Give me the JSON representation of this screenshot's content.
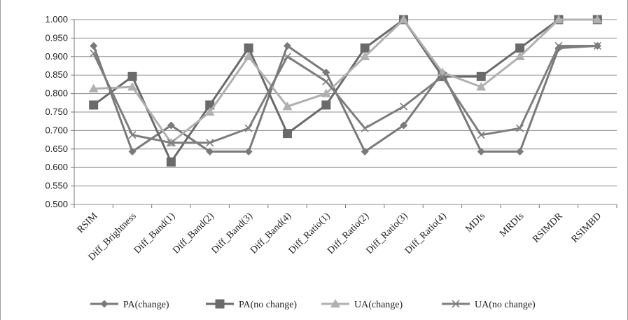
{
  "chart_data": {
    "type": "line",
    "title": "",
    "xlabel": "",
    "ylabel": "",
    "ylim": [
      0.5,
      1.0
    ],
    "yticks": [
      "0.500",
      "0.550",
      "0.600",
      "0.650",
      "0.700",
      "0.750",
      "0.800",
      "0.850",
      "0.900",
      "0.950",
      "1.000"
    ],
    "grid": true,
    "legend_position": "bottom",
    "categories": [
      "RSIM",
      "Diff_Brightness",
      "Diff_Band(1)",
      "Diff_Band(2)",
      "Diff_Band(3)",
      "Diff_Band(4)",
      "Diff_Ratio(1)",
      "Diff_Ratio(2)",
      "Diff_Ratio(3)",
      "Diff_Ratio(4)",
      "MDIs",
      "MRDIs",
      "RSIMDR",
      "RSIMBD"
    ],
    "series": [
      {
        "name": "PA(change)",
        "marker": "diamond",
        "color": "#7a7a7a",
        "values": [
          0.929,
          0.643,
          0.714,
          0.643,
          0.643,
          0.929,
          0.857,
          0.643,
          0.714,
          0.857,
          0.643,
          0.643,
          0.923,
          0.929
        ]
      },
      {
        "name": "PA(no change)",
        "marker": "square",
        "color": "#6a6a6a",
        "values": [
          0.769,
          0.846,
          0.615,
          0.769,
          0.923,
          0.692,
          0.769,
          0.923,
          1.0,
          0.846,
          0.846,
          0.923,
          1.0,
          1.0
        ]
      },
      {
        "name": "UA(change)",
        "marker": "triangle",
        "color": "#b0b0b0",
        "values": [
          0.813,
          0.818,
          0.667,
          0.75,
          0.9,
          0.765,
          0.8,
          0.9,
          1.0,
          0.857,
          0.818,
          0.9,
          1.0,
          1.0
        ]
      },
      {
        "name": "UA(no change)",
        "marker": "x",
        "color": "#7e7e7e",
        "values": [
          0.909,
          0.688,
          0.667,
          0.667,
          0.706,
          0.9,
          0.833,
          0.706,
          0.765,
          0.846,
          0.688,
          0.706,
          0.929,
          0.929
        ]
      }
    ]
  }
}
